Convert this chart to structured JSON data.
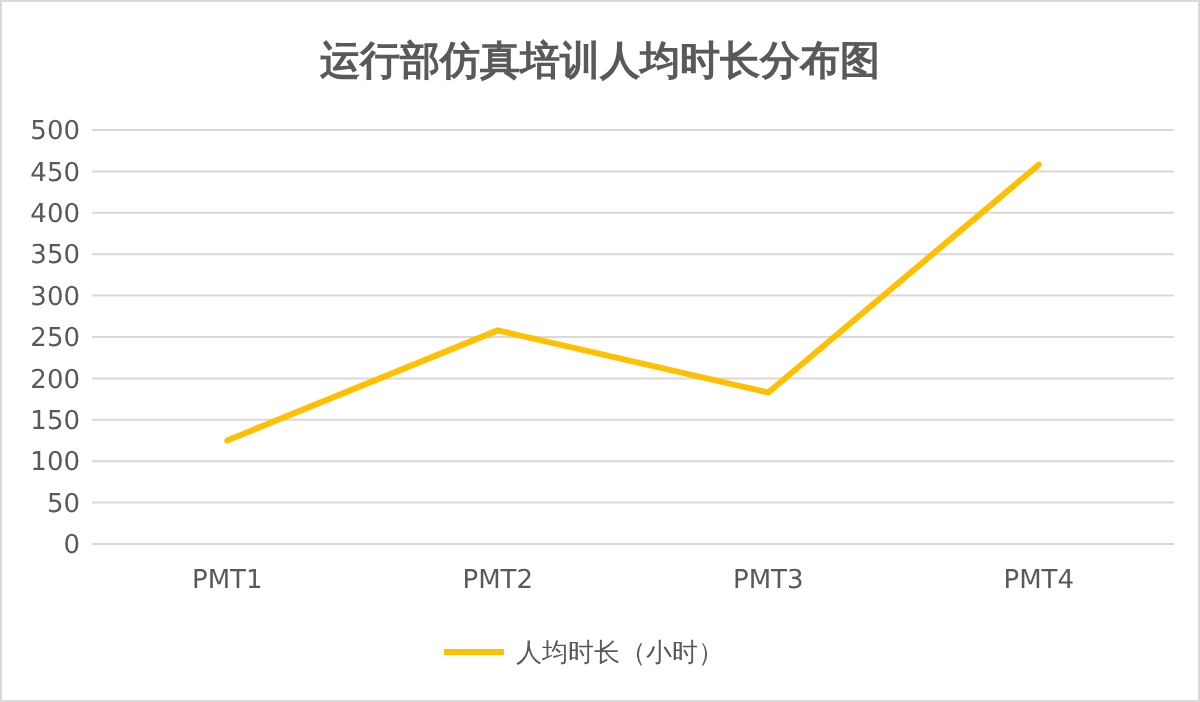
{
  "chart_data": {
    "type": "line",
    "title": "运行部仿真培训人均时长分布图",
    "categories": [
      "PMT1",
      "PMT2",
      "PMT3",
      "PMT4"
    ],
    "series": [
      {
        "name": "人均时长（小时）",
        "color": "#ffc000",
        "values": [
          125,
          258,
          183,
          458
        ]
      }
    ],
    "ylim": [
      0,
      500
    ],
    "yticks": [
      0,
      50,
      100,
      150,
      200,
      250,
      300,
      350,
      400,
      450,
      500
    ],
    "grid": "y",
    "legend": "bottom",
    "marker": "none",
    "line_style": "solid"
  }
}
